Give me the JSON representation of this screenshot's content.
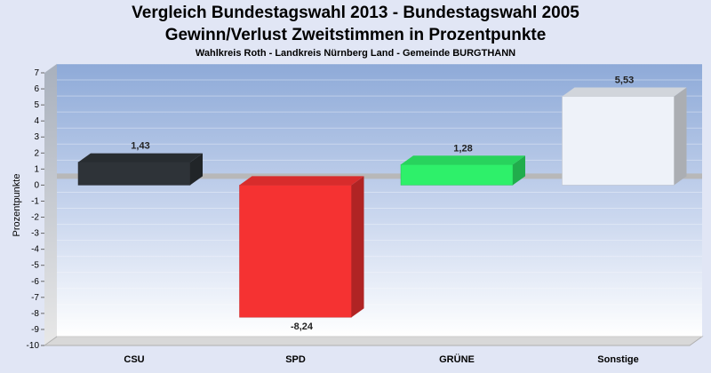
{
  "chart_data": {
    "type": "bar",
    "title": "Vergleich Bundestagswahl 2013  - Bundestagswahl 2005",
    "subtitle": "Gewinn/Verlust Zweitstimmen in Prozentpunkte",
    "caption": "Wahlkreis Roth - Landkreis Nürnberg Land - Gemeinde BURGTHANN",
    "ylabel": "Prozentpunkte",
    "xlabel": "",
    "ylim": [
      -10,
      7
    ],
    "yticks": [
      7,
      6,
      5,
      4,
      3,
      2,
      1,
      0,
      -1,
      -2,
      -3,
      -4,
      -5,
      -6,
      -7,
      -8,
      -9,
      -10
    ],
    "grid": true,
    "categories": [
      "CSU",
      "SPD",
      "GRÜNE",
      "Sonstige"
    ],
    "values": [
      1.43,
      -8.24,
      1.28,
      5.53
    ],
    "value_labels": [
      "1,43",
      "-8,24",
      "1,28",
      "5,53"
    ],
    "colors": [
      "#2e3338",
      "#f53232",
      "#2ef06a",
      "#eef2f9"
    ]
  }
}
